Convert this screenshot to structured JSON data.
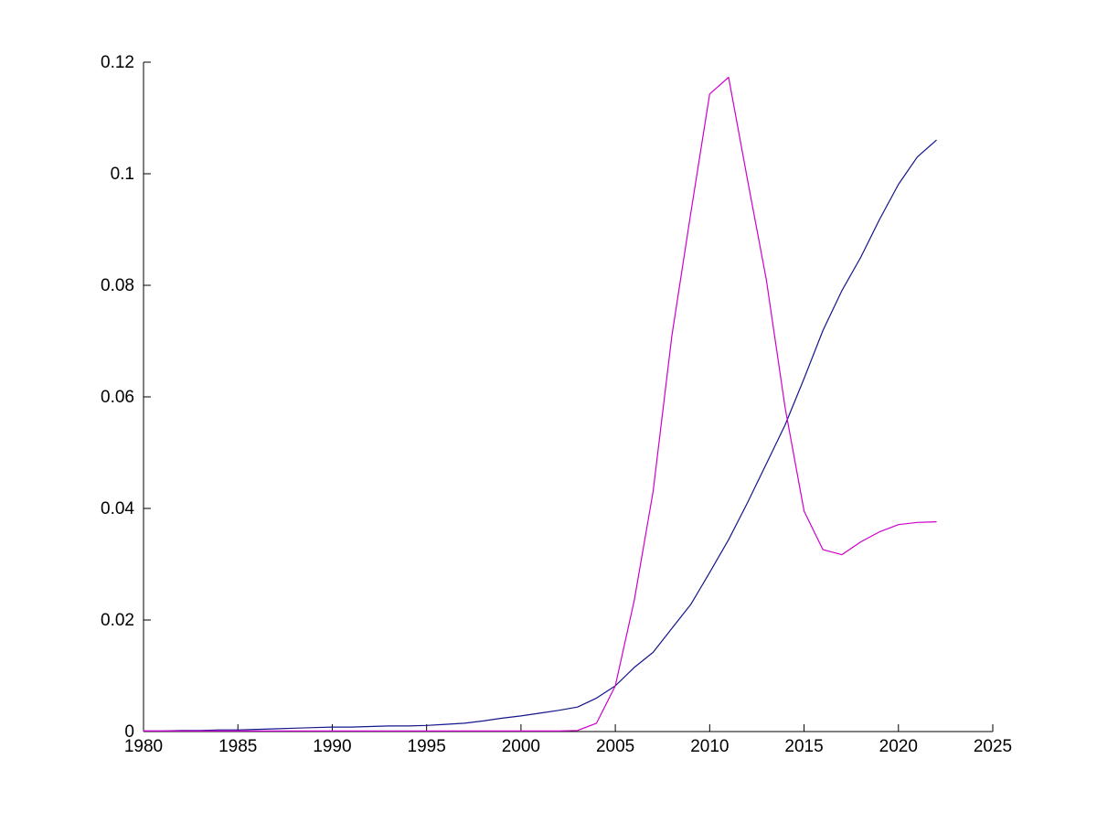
{
  "figure": {
    "background": "#FFFFFF",
    "axis_color": "#000000",
    "text_color": "#000000"
  },
  "chart_data": {
    "type": "line",
    "title": "",
    "xlabel": "",
    "ylabel": "",
    "grid": false,
    "legend": "none",
    "xlim": [
      1980,
      2025
    ],
    "ylim": [
      0,
      0.12
    ],
    "xticks": [
      1980,
      1985,
      1990,
      1995,
      2000,
      2005,
      2010,
      2015,
      2020,
      2025
    ],
    "xtick_labels": [
      "1980",
      "1985",
      "1990",
      "1995",
      "2000",
      "2005",
      "2010",
      "2015",
      "2020",
      "2025"
    ],
    "yticks": [
      0,
      0.02,
      0.04,
      0.06,
      0.08,
      0.1,
      0.12
    ],
    "ytick_labels": [
      "0",
      "0.02",
      "0.04",
      "0.06",
      "0.08",
      "0.1",
      "0.12"
    ],
    "x": [
      1980,
      1981,
      1982,
      1983,
      1984,
      1985,
      1986,
      1987,
      1988,
      1989,
      1990,
      1991,
      1992,
      1993,
      1994,
      1995,
      1996,
      1997,
      1998,
      1999,
      2000,
      2001,
      2002,
      2003,
      2004,
      2005,
      2006,
      2007,
      2008,
      2009,
      2010,
      2011,
      2012,
      2013,
      2014,
      2015,
      2016,
      2017,
      2018,
      2019,
      2020,
      2021,
      2022
    ],
    "series": [
      {
        "name": "dark-blue-line",
        "color": "#14148C",
        "values": [
          0.0001,
          0.0001,
          0.0002,
          0.0002,
          0.0003,
          0.0003,
          0.0004,
          0.0005,
          0.0006,
          0.0007,
          0.0008,
          0.0008,
          0.0009,
          0.001,
          0.001,
          0.0011,
          0.0013,
          0.0015,
          0.0019,
          0.0024,
          0.0028,
          0.0033,
          0.0038,
          0.0044,
          0.006,
          0.0082,
          0.0115,
          0.0142,
          0.0185,
          0.0228,
          0.0285,
          0.0344,
          0.041,
          0.048,
          0.055,
          0.0633,
          0.0719,
          0.079,
          0.085,
          0.0918,
          0.0981,
          0.103,
          0.106
        ]
      },
      {
        "name": "magenta-line",
        "color": "#CC00CC",
        "values": [
          0.0001,
          0.0001,
          0.0001,
          0.0001,
          0.0001,
          0.0001,
          0.0001,
          0.0001,
          0.0001,
          0.0001,
          0.0001,
          0.0001,
          0.0001,
          0.0001,
          0.0001,
          0.0001,
          0.0001,
          0.0001,
          0.0001,
          0.0001,
          0.0001,
          0.0001,
          0.0001,
          0.0002,
          0.0015,
          0.0082,
          0.0235,
          0.043,
          0.071,
          0.093,
          0.1143,
          0.1173,
          0.099,
          0.081,
          0.058,
          0.0395,
          0.0326,
          0.0317,
          0.034,
          0.0358,
          0.0371,
          0.0375,
          0.0376
        ]
      }
    ]
  }
}
